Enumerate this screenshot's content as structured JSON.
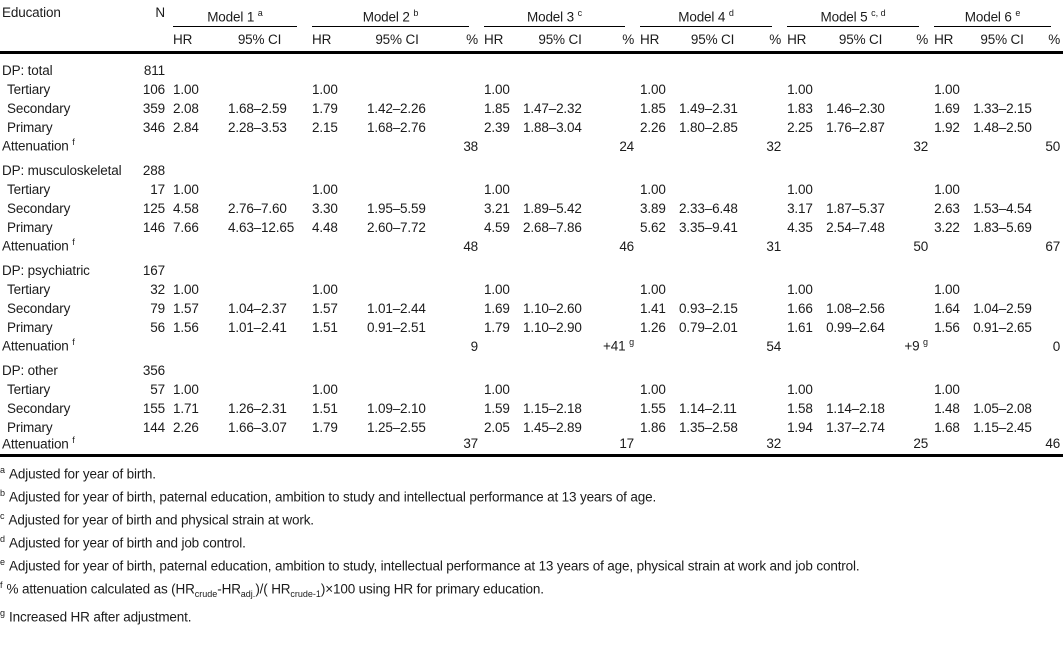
{
  "table": {
    "header": {
      "education": "Education",
      "n": "N",
      "hr": "HR",
      "ci": "95% CI",
      "pct": "%",
      "models": [
        {
          "label": "Model 1",
          "sup": "a",
          "pct": false
        },
        {
          "label": "Model 2",
          "sup": "b",
          "pct": true
        },
        {
          "label": "Model 3",
          "sup": "c",
          "pct": true
        },
        {
          "label": "Model 4",
          "sup": "d",
          "pct": true
        },
        {
          "label": "Model 5",
          "sup": "c, d",
          "pct": true
        },
        {
          "label": "Model 6",
          "sup": "e",
          "pct": true
        }
      ]
    },
    "groups": [
      {
        "label": "DP: total",
        "n": "811",
        "rows": [
          {
            "label": "Tertiary",
            "n": "106",
            "models": [
              {
                "hr": "1.00",
                "ci": ""
              },
              {
                "hr": "1.00",
                "ci": ""
              },
              {
                "hr": "1.00",
                "ci": ""
              },
              {
                "hr": "1.00",
                "ci": ""
              },
              {
                "hr": "1.00",
                "ci": ""
              },
              {
                "hr": "1.00",
                "ci": ""
              }
            ]
          },
          {
            "label": "Secondary",
            "n": "359",
            "models": [
              {
                "hr": "2.08",
                "ci": "1.68–2.59"
              },
              {
                "hr": "1.79",
                "ci": "1.42–2.26"
              },
              {
                "hr": "1.85",
                "ci": "1.47–2.32"
              },
              {
                "hr": "1.85",
                "ci": "1.49–2.31"
              },
              {
                "hr": "1.83",
                "ci": "1.46–2.30"
              },
              {
                "hr": "1.69",
                "ci": "1.33–2.15"
              }
            ]
          },
          {
            "label": "Primary",
            "n": "346",
            "models": [
              {
                "hr": "2.84",
                "ci": "2.28–3.53"
              },
              {
                "hr": "2.15",
                "ci": "1.68–2.76"
              },
              {
                "hr": "2.39",
                "ci": "1.88–3.04"
              },
              {
                "hr": "2.26",
                "ci": "1.80–2.85"
              },
              {
                "hr": "2.25",
                "ci": "1.76–2.87"
              },
              {
                "hr": "1.92",
                "ci": "1.48–2.50"
              }
            ]
          }
        ],
        "attenuation": {
          "label": "Attenuation",
          "sup": "f",
          "values": [
            null,
            {
              "v": "38"
            },
            {
              "v": "24"
            },
            {
              "v": "32"
            },
            {
              "v": "32"
            },
            {
              "v": "50"
            }
          ]
        }
      },
      {
        "label": "DP: musculoskeletal",
        "n": "288",
        "rows": [
          {
            "label": "Tertiary",
            "n": "17",
            "models": [
              {
                "hr": "1.00",
                "ci": ""
              },
              {
                "hr": "1.00",
                "ci": ""
              },
              {
                "hr": "1.00",
                "ci": ""
              },
              {
                "hr": "1.00",
                "ci": ""
              },
              {
                "hr": "1.00",
                "ci": ""
              },
              {
                "hr": "1.00",
                "ci": ""
              }
            ]
          },
          {
            "label": "Secondary",
            "n": "125",
            "models": [
              {
                "hr": "4.58",
                "ci": "2.76–7.60"
              },
              {
                "hr": "3.30",
                "ci": "1.95–5.59"
              },
              {
                "hr": "3.21",
                "ci": "1.89–5.42"
              },
              {
                "hr": "3.89",
                "ci": "2.33–6.48"
              },
              {
                "hr": "3.17",
                "ci": "1.87–5.37"
              },
              {
                "hr": "2.63",
                "ci": "1.53–4.54"
              }
            ]
          },
          {
            "label": "Primary",
            "n": "146",
            "models": [
              {
                "hr": "7.66",
                "ci": "4.63–12.65"
              },
              {
                "hr": "4.48",
                "ci": "2.60–7.72"
              },
              {
                "hr": "4.59",
                "ci": "2.68–7.86"
              },
              {
                "hr": "5.62",
                "ci": "3.35–9.41"
              },
              {
                "hr": "4.35",
                "ci": "2.54–7.48"
              },
              {
                "hr": "3.22",
                "ci": "1.83–5.69"
              }
            ]
          }
        ],
        "attenuation": {
          "label": "Attenuation",
          "sup": "f",
          "values": [
            null,
            {
              "v": "48"
            },
            {
              "v": "46"
            },
            {
              "v": "31"
            },
            {
              "v": "50"
            },
            {
              "v": "67"
            }
          ]
        }
      },
      {
        "label": "DP: psychiatric",
        "n": "167",
        "rows": [
          {
            "label": "Tertiary",
            "n": "32",
            "models": [
              {
                "hr": "1.00",
                "ci": ""
              },
              {
                "hr": "1.00",
                "ci": ""
              },
              {
                "hr": "1.00",
                "ci": ""
              },
              {
                "hr": "1.00",
                "ci": ""
              },
              {
                "hr": "1.00",
                "ci": ""
              },
              {
                "hr": "1.00",
                "ci": ""
              }
            ]
          },
          {
            "label": "Secondary",
            "n": "79",
            "models": [
              {
                "hr": "1.57",
                "ci": "1.04–2.37"
              },
              {
                "hr": "1.57",
                "ci": "1.01–2.44"
              },
              {
                "hr": "1.69",
                "ci": "1.10–2.60"
              },
              {
                "hr": "1.41",
                "ci": "0.93–2.15"
              },
              {
                "hr": "1.66",
                "ci": "1.08–2.56"
              },
              {
                "hr": "1.64",
                "ci": "1.04–2.59"
              }
            ]
          },
          {
            "label": "Primary",
            "n": "56",
            "models": [
              {
                "hr": "1.56",
                "ci": "1.01–2.41"
              },
              {
                "hr": "1.51",
                "ci": "0.91–2.51"
              },
              {
                "hr": "1.79",
                "ci": "1.10–2.90"
              },
              {
                "hr": "1.26",
                "ci": "0.79–2.01"
              },
              {
                "hr": "1.61",
                "ci": "0.99–2.64"
              },
              {
                "hr": "1.56",
                "ci": "0.91–2.65"
              }
            ]
          }
        ],
        "attenuation": {
          "label": "Attenuation",
          "sup": "f",
          "values": [
            null,
            {
              "v": "9"
            },
            {
              "v": "+41",
              "sup": "g"
            },
            {
              "v": "54"
            },
            {
              "v": "+9",
              "sup": "g"
            },
            {
              "v": "0"
            }
          ]
        }
      },
      {
        "label": "DP: other",
        "n": "356",
        "rows": [
          {
            "label": "Tertiary",
            "n": "57",
            "models": [
              {
                "hr": "1.00",
                "ci": ""
              },
              {
                "hr": "1.00",
                "ci": ""
              },
              {
                "hr": "1.00",
                "ci": ""
              },
              {
                "hr": "1.00",
                "ci": ""
              },
              {
                "hr": "1.00",
                "ci": ""
              },
              {
                "hr": "1.00",
                "ci": ""
              }
            ]
          },
          {
            "label": "Secondary",
            "n": "155",
            "models": [
              {
                "hr": "1.71",
                "ci": "1.26–2.31"
              },
              {
                "hr": "1.51",
                "ci": "1.09–2.10"
              },
              {
                "hr": "1.59",
                "ci": "1.15–2.18"
              },
              {
                "hr": "1.55",
                "ci": "1.14–2.11"
              },
              {
                "hr": "1.58",
                "ci": "1.14–2.18"
              },
              {
                "hr": "1.48",
                "ci": "1.05–2.08"
              }
            ]
          },
          {
            "label": "Primary",
            "n": "144",
            "models": [
              {
                "hr": "2.26",
                "ci": "1.66–3.07"
              },
              {
                "hr": "1.79",
                "ci": "1.25–2.55"
              },
              {
                "hr": "2.05",
                "ci": "1.45–2.89"
              },
              {
                "hr": "1.86",
                "ci": "1.35–2.58"
              },
              {
                "hr": "1.94",
                "ci": "1.37–2.74"
              },
              {
                "hr": "1.68",
                "ci": "1.15–2.45"
              }
            ]
          }
        ],
        "attenuation": {
          "label": "Attenuation",
          "sup": "f",
          "values": [
            null,
            {
              "v": "37"
            },
            {
              "v": "17"
            },
            {
              "v": "32"
            },
            {
              "v": "25"
            },
            {
              "v": "46"
            }
          ]
        }
      }
    ]
  },
  "footnotes": [
    {
      "sup": "a",
      "text": "Adjusted for year of birth."
    },
    {
      "sup": "b",
      "text": "Adjusted for year of birth, paternal education, ambition to study and intellectual performance at 13 years of age."
    },
    {
      "sup": "c",
      "text": "Adjusted for year of birth and physical strain at work."
    },
    {
      "sup": "d",
      "text": "Adjusted for year of birth and job control."
    },
    {
      "sup": "e",
      "text": "Adjusted for year of birth, paternal education, ambition to study, intellectual performance at 13 years of age, physical strain at work and job control."
    },
    {
      "sup": "f",
      "parts": [
        {
          "t": "% attenuation calculated as (HR"
        },
        {
          "sub": "crude"
        },
        {
          "t": "-HR"
        },
        {
          "sub": "adj."
        },
        {
          "t": ")/( HR"
        },
        {
          "sub": "crude-1"
        },
        {
          "t": ")×100 using HR for primary education."
        }
      ]
    },
    {
      "sup": "g",
      "text": "Increased HR after adjustment."
    }
  ],
  "colors": {
    "text": "#1b1b1b",
    "rule": "#000000",
    "background": "#ffffff"
  }
}
